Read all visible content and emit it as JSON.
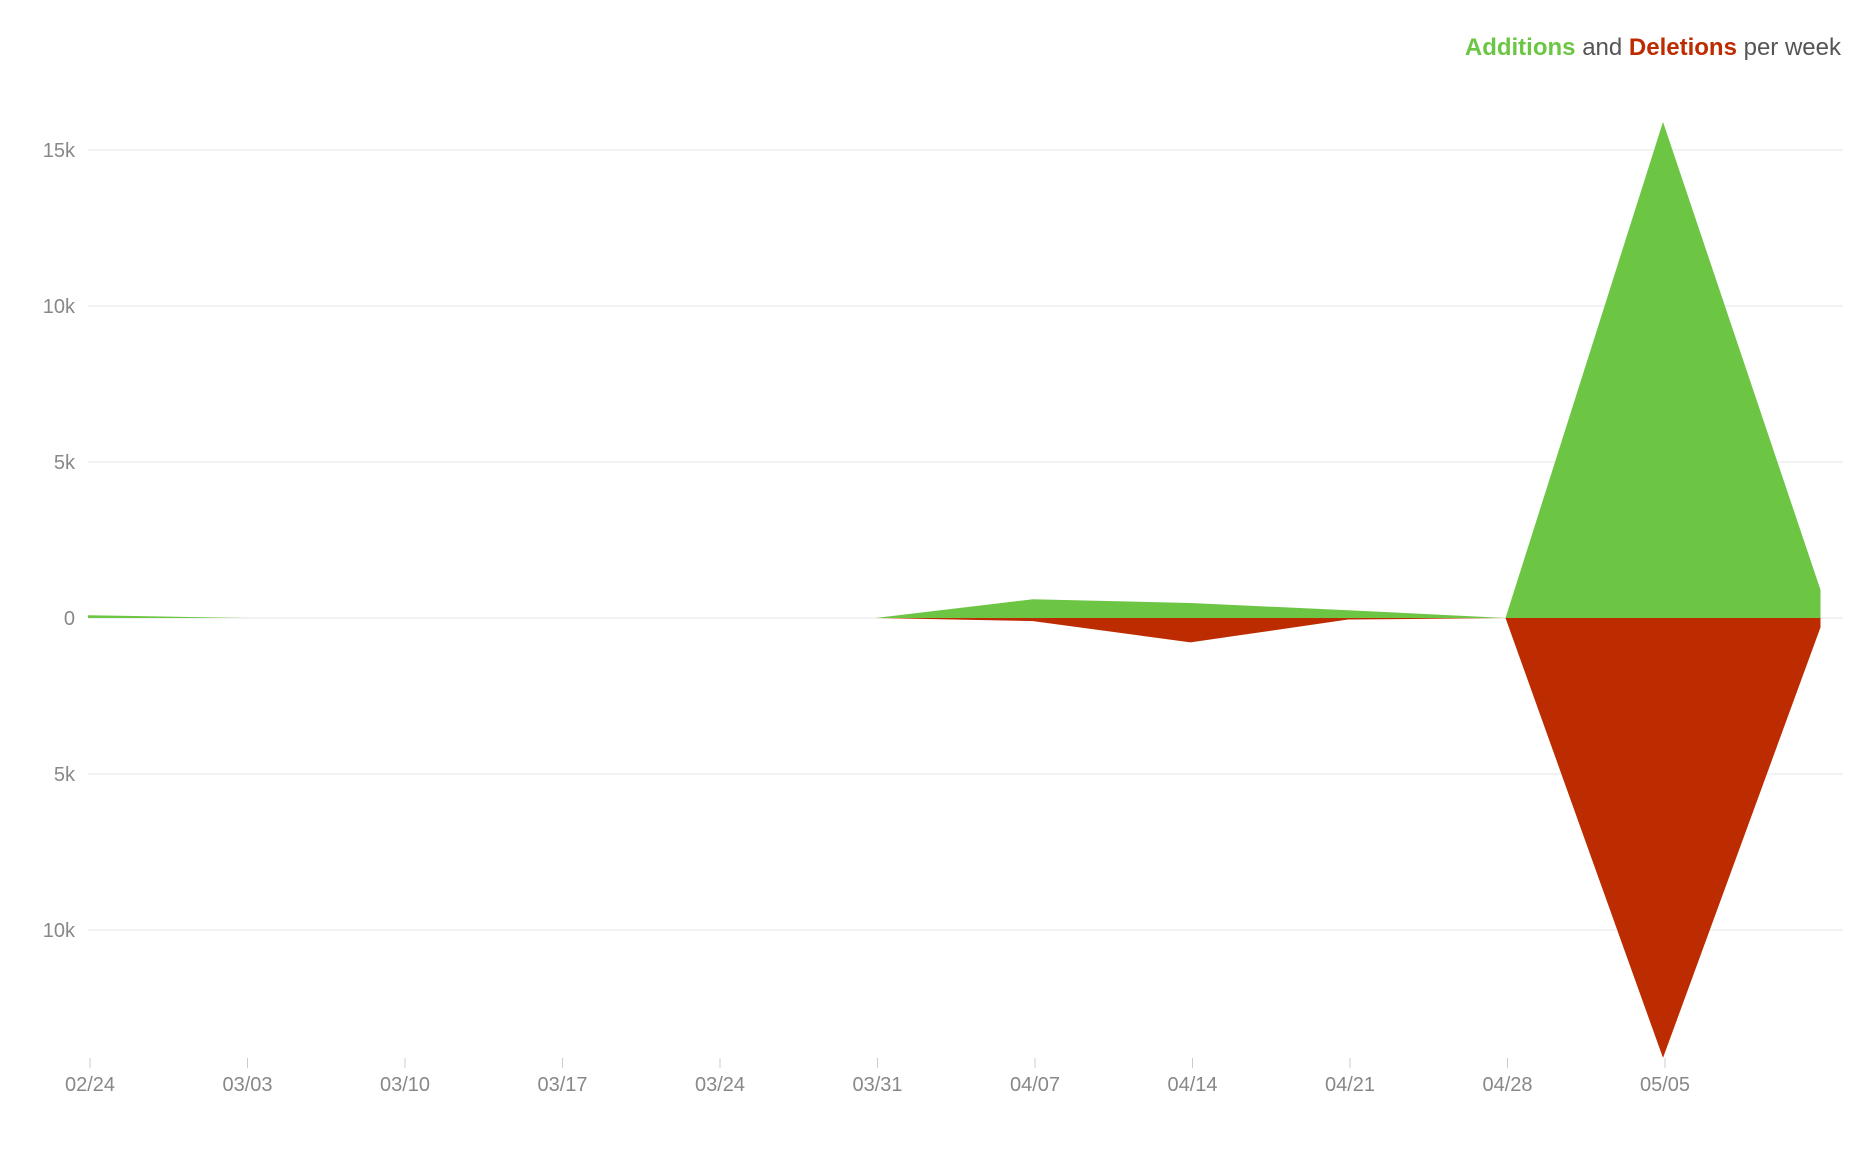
{
  "legend": {
    "additions_label": "Additions",
    "and_label": "and",
    "deletions_label": "Deletions",
    "suffix_label": "per week"
  },
  "chart_data": {
    "type": "area",
    "categories": [
      "02/24",
      "03/03",
      "03/10",
      "03/17",
      "03/24",
      "03/31",
      "04/07",
      "04/14",
      "04/21",
      "04/28",
      "05/05",
      ""
    ],
    "y_tick_values": [
      15000,
      10000,
      5000,
      0,
      -5000,
      -10000
    ],
    "y_tick_labels": [
      "15k",
      "10k",
      "5k",
      "0",
      "5k",
      "10k"
    ],
    "ylim": [
      -14200,
      16200
    ],
    "grid": true,
    "legend_position": "top-right",
    "series": [
      {
        "name": "Additions",
        "color": "#6cc644",
        "values": [
          90,
          0,
          0,
          0,
          0,
          0,
          600,
          480,
          250,
          0,
          15900,
          900
        ]
      },
      {
        "name": "Deletions",
        "color": "#bd2c00",
        "values": [
          0,
          0,
          0,
          0,
          0,
          0,
          -100,
          -780,
          -50,
          0,
          -14100,
          -300
        ]
      }
    ]
  }
}
